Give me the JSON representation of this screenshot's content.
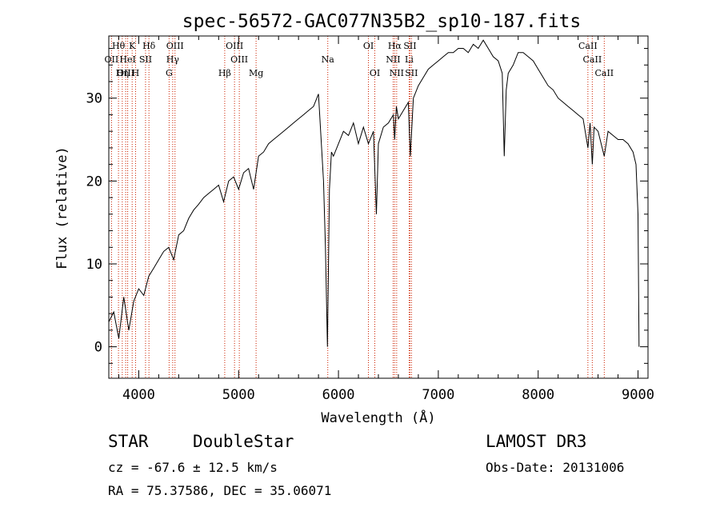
{
  "chart_data": {
    "type": "line",
    "title": "spec-56572-GAC077N35B2_sp10-187.fits",
    "xlabel": "Wavelength (Å)",
    "ylabel": "Flux (relative)",
    "xlim": [
      3700,
      9100
    ],
    "ylim": [
      -3.8,
      37.5
    ],
    "xticks": [
      4000,
      5000,
      6000,
      7000,
      8000,
      9000
    ],
    "yticks": [
      0,
      10,
      20,
      30
    ],
    "series": [
      {
        "name": "flux",
        "x": [
          3700,
          3750,
          3800,
          3850,
          3900,
          3950,
          4000,
          4050,
          4100,
          4150,
          4200,
          4250,
          4300,
          4350,
          4400,
          4450,
          4500,
          4550,
          4600,
          4650,
          4700,
          4750,
          4800,
          4850,
          4900,
          4950,
          5000,
          5050,
          5100,
          5150,
          5200,
          5250,
          5300,
          5350,
          5400,
          5450,
          5500,
          5550,
          5600,
          5650,
          5700,
          5750,
          5800,
          5850,
          5870,
          5890,
          5910,
          5930,
          5950,
          6000,
          6050,
          6100,
          6150,
          6200,
          6250,
          6300,
          6350,
          6380,
          6400,
          6450,
          6500,
          6550,
          6563,
          6580,
          6600,
          6650,
          6700,
          6720,
          6750,
          6800,
          6850,
          6900,
          6950,
          7000,
          7050,
          7100,
          7150,
          7200,
          7250,
          7300,
          7350,
          7400,
          7450,
          7500,
          7550,
          7600,
          7640,
          7660,
          7680,
          7700,
          7750,
          7800,
          7850,
          7900,
          7950,
          8000,
          8050,
          8100,
          8150,
          8200,
          8250,
          8300,
          8350,
          8400,
          8450,
          8498,
          8520,
          8542,
          8560,
          8600,
          8662,
          8700,
          8750,
          8800,
          8850,
          8900,
          8950,
          8980,
          9000,
          9010
        ],
        "values": [
          3.0,
          4.2,
          1.0,
          6.0,
          2.0,
          5.5,
          7.0,
          6.2,
          8.5,
          9.5,
          10.5,
          11.5,
          12.0,
          10.5,
          13.5,
          14.0,
          15.5,
          16.5,
          17.2,
          18.0,
          18.5,
          19.0,
          19.5,
          17.5,
          20.0,
          20.5,
          19.0,
          21.0,
          21.5,
          19.0,
          23.0,
          23.5,
          24.5,
          25.0,
          25.5,
          26.0,
          26.5,
          27.0,
          27.5,
          28.0,
          28.5,
          29.0,
          30.5,
          20.0,
          12.0,
          0.0,
          19.0,
          23.5,
          23.0,
          24.5,
          26.0,
          25.5,
          27.0,
          24.5,
          26.5,
          24.5,
          26.0,
          16.0,
          24.5,
          26.5,
          27.0,
          28.0,
          25.0,
          29.0,
          27.5,
          28.5,
          29.5,
          23.0,
          30.0,
          31.5,
          32.5,
          33.5,
          34.0,
          34.5,
          35.0,
          35.5,
          35.5,
          36.0,
          36.0,
          35.5,
          36.5,
          36.0,
          37.0,
          36.0,
          35.0,
          34.5,
          33.0,
          23.0,
          31.0,
          33.0,
          34.0,
          35.5,
          35.5,
          35.0,
          34.5,
          33.5,
          32.5,
          31.5,
          31.0,
          30.0,
          29.5,
          29.0,
          28.5,
          28.0,
          27.5,
          24.0,
          27.0,
          22.0,
          26.5,
          26.0,
          23.0,
          26.0,
          25.5,
          25.0,
          25.0,
          24.5,
          23.5,
          22.0,
          16.0,
          0.0
        ]
      }
    ],
    "lines_row1": [
      {
        "label": "Hθ",
        "x": 3797
      },
      {
        "label": "K",
        "x": 3934
      },
      {
        "label": "Hδ",
        "x": 4102
      },
      {
        "label": "OIII",
        "x": 4363
      },
      {
        "label": "OIII",
        "x": 4959
      },
      {
        "label": "OI",
        "x": 6300
      },
      {
        "label": "Hα",
        "x": 6563
      },
      {
        "label": "SII",
        "x": 6716
      },
      {
        "label": "CaII",
        "x": 8498
      }
    ],
    "lines_row2": [
      {
        "label": "OII",
        "x": 3727
      },
      {
        "label": "HeI",
        "x": 3889
      },
      {
        "label": "SII",
        "x": 4068
      },
      {
        "label": "Hγ",
        "x": 4340
      },
      {
        "label": "OIII",
        "x": 5007
      },
      {
        "label": "Na",
        "x": 5893
      },
      {
        "label": "NII",
        "x": 6548
      },
      {
        "label": "Li",
        "x": 6708
      },
      {
        "label": "CaII",
        "x": 8542
      }
    ],
    "lines_row3": [
      {
        "label": "OIII",
        "x": 3869
      },
      {
        "label": "Hη",
        "x": 3835
      },
      {
        "label": "H",
        "x": 3968
      },
      {
        "label": "G",
        "x": 4304
      },
      {
        "label": "Hβ",
        "x": 4861
      },
      {
        "label": "Mg",
        "x": 5175
      },
      {
        "label": "OI",
        "x": 6364
      },
      {
        "label": "NII",
        "x": 6583
      },
      {
        "label": "SII",
        "x": 6731
      },
      {
        "label": "CaII",
        "x": 8662
      }
    ],
    "colors": {
      "line": "#000000",
      "marker": "#cc2200"
    }
  },
  "info": {
    "class": "STAR",
    "subclass": "DoubleStar",
    "survey": "LAMOST DR3",
    "cz": "cz = -67.6 ± 12.5 km/s",
    "obs_date": "Obs-Date: 20131006",
    "radec": "RA =  75.37586, DEC =  35.06071"
  }
}
